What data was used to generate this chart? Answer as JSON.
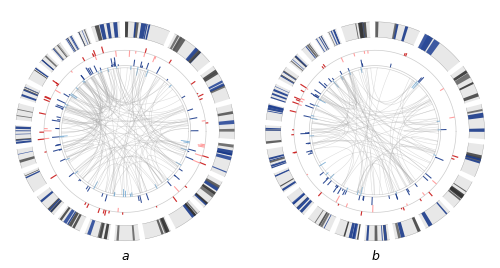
{
  "figure_width": 5.0,
  "figure_height": 2.68,
  "dpi": 100,
  "background_color": "#ffffff",
  "label_a": "a",
  "label_b": "b",
  "cis_pos_color": "#cc2222",
  "cis_neg_color": "#ff9999",
  "trans_pos_color": "#1a3a8a",
  "trans_neg_color": "#7aadd4",
  "link_color": "#aaaaaa",
  "link_alpha": 0.45,
  "num_links_a": 130,
  "num_links_b": 90,
  "num_cis_bars_a": 55,
  "num_trans_bars_a": 90,
  "num_cis_bars_b": 40,
  "num_trans_bars_b": 75,
  "seed_links_a": 42,
  "seed_bars_a": 7,
  "seed_links_b": 123,
  "seed_bars_b": 55
}
